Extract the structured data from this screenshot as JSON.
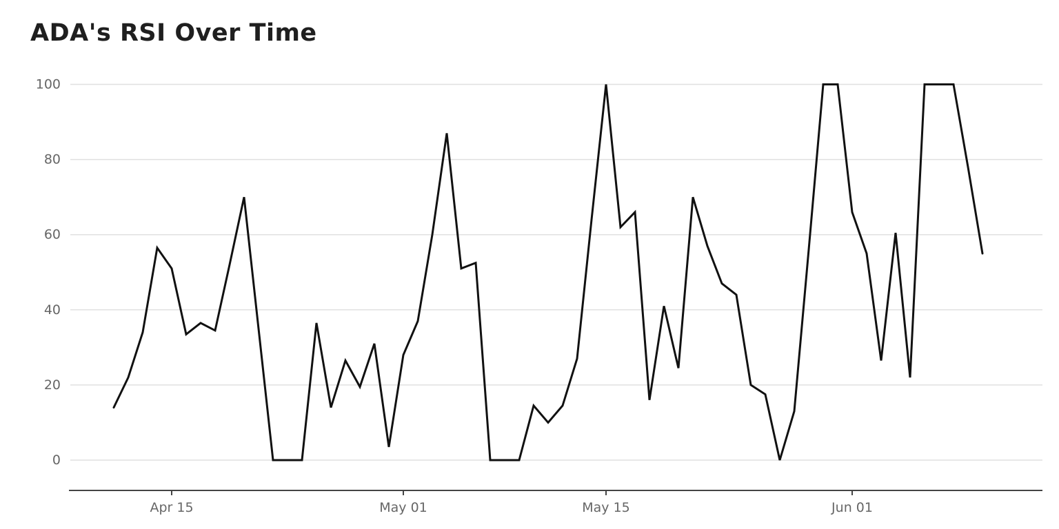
{
  "title": "ADA's RSI Over Time",
  "chart_data": {
    "type": "line",
    "title": "ADA's RSI Over Time",
    "series_name": "ADA RSI",
    "x": [
      "Apr 11",
      "Apr 12",
      "Apr 13",
      "Apr 14",
      "Apr 15",
      "Apr 16",
      "Apr 17",
      "Apr 18",
      "Apr 19",
      "Apr 20",
      "Apr 21",
      "Apr 22",
      "Apr 23",
      "Apr 24",
      "Apr 25",
      "Apr 26",
      "Apr 27",
      "Apr 28",
      "Apr 29",
      "Apr 30",
      "May 01",
      "May 02",
      "May 03",
      "May 04",
      "May 05",
      "May 06",
      "May 07",
      "May 08",
      "May 09",
      "May 10",
      "May 11",
      "May 12",
      "May 13",
      "May 14",
      "May 15",
      "May 16",
      "May 17",
      "May 18",
      "May 19",
      "May 20",
      "May 21",
      "May 22",
      "May 23",
      "May 24",
      "May 25",
      "May 26",
      "May 27",
      "May 28",
      "May 29",
      "May 30",
      "May 31",
      "Jun 01",
      "Jun 02",
      "Jun 03",
      "Jun 04",
      "Jun 05",
      "Jun 06",
      "Jun 07",
      "Jun 08",
      "Jun 09",
      "Jun 10"
    ],
    "values": [
      14,
      22,
      34,
      56.5,
      51,
      33.5,
      36.5,
      34.5,
      52,
      70,
      35,
      0,
      0,
      0,
      36.5,
      14,
      26.5,
      19.5,
      31,
      3.5,
      28,
      37,
      60,
      87,
      51,
      52.5,
      0,
      0,
      0,
      14.5,
      10,
      14.5,
      27,
      64,
      100,
      62,
      66,
      16,
      41,
      24.5,
      70,
      57,
      47,
      44,
      20,
      17.5,
      0,
      13,
      56,
      100,
      100,
      66,
      55,
      26.5,
      60.5,
      22,
      100,
      100,
      100,
      78,
      55
    ],
    "ylim": [
      0,
      100
    ],
    "yticks": [
      0,
      20,
      40,
      60,
      80,
      100
    ],
    "xticks": [
      {
        "label": "Apr 15",
        "index": 4
      },
      {
        "label": "May 01",
        "index": 20
      },
      {
        "label": "May 15",
        "index": 34
      },
      {
        "label": "Jun 01",
        "index": 51
      }
    ],
    "xlabel": "",
    "ylabel": "",
    "grid": "horizontal",
    "legend": "none",
    "colors": {
      "line": "#111111",
      "grid": "#e0e0e0",
      "axis": "#444444",
      "tick_labels": "#666666",
      "title": "#1f1f1f",
      "background": "#ffffff"
    }
  }
}
